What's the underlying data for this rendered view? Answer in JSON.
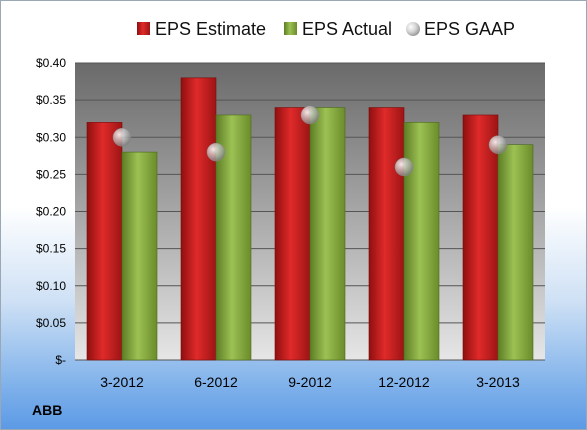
{
  "chart_data": {
    "type": "bar",
    "categories": [
      "3-2012",
      "6-2012",
      "9-2012",
      "12-2012",
      "3-2013"
    ],
    "series": [
      {
        "name": "EPS Estimate",
        "values": [
          0.32,
          0.38,
          0.34,
          0.34,
          0.33
        ],
        "color": "#cc1f1f",
        "kind": "bar"
      },
      {
        "name": "EPS Actual",
        "values": [
          0.28,
          0.33,
          0.34,
          0.32,
          0.29
        ],
        "color": "#7fa33a",
        "kind": "bar"
      },
      {
        "name": "EPS GAAP",
        "values": [
          0.3,
          0.28,
          0.33,
          0.26,
          0.29
        ],
        "color": "#b8b8b8",
        "kind": "marker"
      }
    ],
    "ylim": [
      0,
      0.4
    ],
    "yticks": [
      0,
      0.05,
      0.1,
      0.15,
      0.2,
      0.25,
      0.3,
      0.35,
      0.4
    ],
    "ytick_labels": [
      "$-",
      "$0.05",
      "$0.10",
      "$0.15",
      "$0.20",
      "$0.25",
      "$0.30",
      "$0.35",
      "$0.40"
    ],
    "grid": true,
    "legend_position": "top",
    "company_label": "ABB"
  }
}
